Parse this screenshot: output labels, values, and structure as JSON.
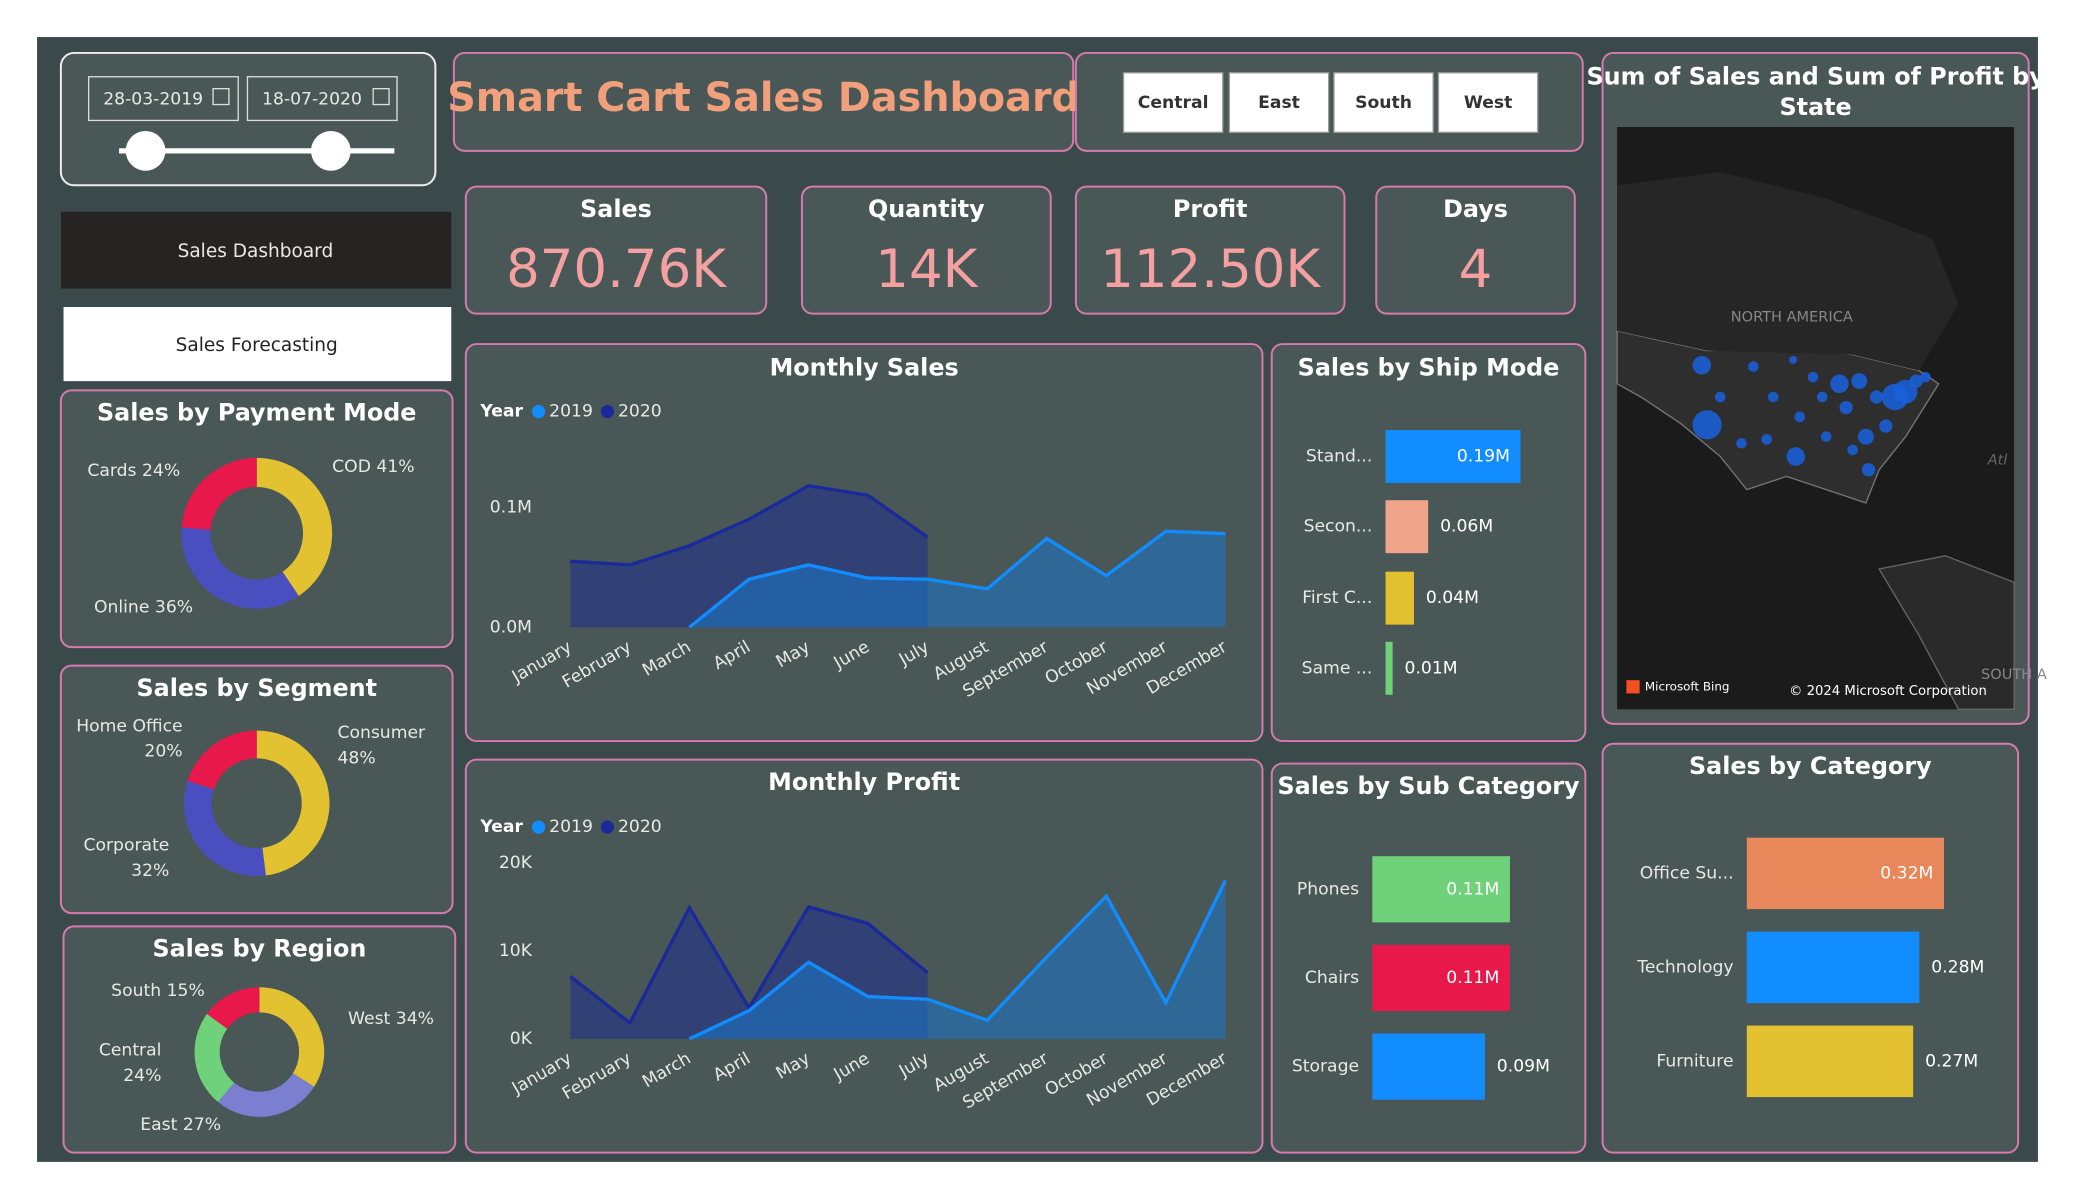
{
  "filters": {
    "date_start": "28-03-2019",
    "date_end": "18-07-2020",
    "regions": [
      "Central",
      "East",
      "South",
      "West"
    ]
  },
  "navigation": [
    "Sales Dashboard",
    "Sales Forecasting"
  ],
  "header": {
    "title": "Smart Cart Sales Dashboard"
  },
  "kpis": [
    {
      "label": "Sales",
      "value": "870.76K"
    },
    {
      "label": "Quantity",
      "value": "14K"
    },
    {
      "label": "Profit",
      "value": "112.50K"
    },
    {
      "label": "Days",
      "value": "4"
    }
  ],
  "map": {
    "title": [
      "Sum of Sales and Sum of Profit by",
      "State"
    ],
    "region_label": "NORTH AMERICA",
    "ocean_label": "Atl",
    "south_label": "SOUTH A",
    "attribution": "Microsoft Bing",
    "copyright": "© 2024 Microsoft Corporation"
  },
  "chart_data": [
    {
      "type": "donut",
      "title": "Sales by Payment Mode",
      "categories": [
        "COD",
        "Online",
        "Cards"
      ],
      "values": [
        41,
        36,
        24
      ],
      "value_labels": [
        "41%",
        "36%",
        "24%"
      ],
      "colors": [
        "#e3c232",
        "#4a4fc0",
        "#e8194a"
      ]
    },
    {
      "type": "donut",
      "title": "Sales by Segment",
      "categories": [
        "Consumer",
        "Corporate",
        "Home Office"
      ],
      "values": [
        48,
        32,
        20
      ],
      "value_labels": [
        "48%",
        "32%",
        "20%"
      ],
      "colors": [
        "#e3c232",
        "#4a4fc0",
        "#e8194a"
      ]
    },
    {
      "type": "donut",
      "title": "Sales by Region",
      "categories": [
        "West",
        "East",
        "Central",
        "South"
      ],
      "values": [
        34,
        27,
        24,
        15
      ],
      "value_labels": [
        "34%",
        "27%",
        "24%",
        "15%"
      ],
      "colors": [
        "#e3c232",
        "#7b7fd0",
        "#6fd27a",
        "#e8194a"
      ]
    },
    {
      "type": "area",
      "title": "Monthly Sales",
      "legend_title": "Year",
      "categories": [
        "January",
        "February",
        "March",
        "April",
        "May",
        "June",
        "July",
        "August",
        "September",
        "October",
        "November",
        "December"
      ],
      "series": [
        {
          "name": "2020",
          "color": "#1a2a9a",
          "values": [
            0.055,
            0.052,
            0.068,
            0.09,
            0.118,
            0.11,
            0.075,
            null,
            null,
            null,
            null,
            null
          ]
        },
        {
          "name": "2019",
          "color": "#118dff",
          "values": [
            null,
            null,
            0.0,
            0.04,
            0.052,
            0.041,
            0.04,
            0.032,
            0.074,
            0.043,
            0.08,
            0.078
          ]
        }
      ],
      "ylim": [
        0,
        0.15
      ],
      "yticks": [
        {
          "value": 0,
          "label": "0.0M"
        },
        {
          "value": 0.1,
          "label": "0.1M"
        }
      ]
    },
    {
      "type": "area",
      "title": "Monthly Profit",
      "legend_title": "Year",
      "categories": [
        "January",
        "February",
        "March",
        "April",
        "May",
        "June",
        "July",
        "August",
        "September",
        "October",
        "November",
        "December"
      ],
      "series": [
        {
          "name": "2020",
          "color": "#1a2a9a",
          "values": [
            7.1,
            1.8,
            14.9,
            3.5,
            15.0,
            13.1,
            7.5,
            null,
            null,
            null,
            null,
            null
          ]
        },
        {
          "name": "2019",
          "color": "#118dff",
          "values": [
            null,
            null,
            0,
            3.2,
            8.7,
            4.8,
            4.5,
            2.1,
            9.3,
            16.2,
            4.1,
            18.0
          ]
        }
      ],
      "ylim": [
        0,
        20
      ],
      "yticks": [
        {
          "value": 0,
          "label": "0K"
        },
        {
          "value": 10,
          "label": "10K"
        },
        {
          "value": 20,
          "label": "20K"
        }
      ]
    },
    {
      "type": "hbar",
      "title": "Sales by Ship Mode",
      "categories": [
        "Stand...",
        "Secon...",
        "First C...",
        "Same ..."
      ],
      "values": [
        0.19,
        0.06,
        0.04,
        0.01
      ],
      "value_labels": [
        "0.19M",
        "0.06M",
        "0.04M",
        "0.01M"
      ],
      "colors": [
        "#118dff",
        "#f0a58a",
        "#e3c232",
        "#6fd27a"
      ]
    },
    {
      "type": "hbar",
      "title": "Sales by Sub Category",
      "categories": [
        "Phones",
        "Chairs",
        "Storage"
      ],
      "values": [
        0.11,
        0.11,
        0.09
      ],
      "value_labels": [
        "0.11M",
        "0.11M",
        "0.09M"
      ],
      "colors": [
        "#6fd27a",
        "#e8194a",
        "#118dff"
      ]
    },
    {
      "type": "hbar",
      "title": "Sales by Category",
      "categories": [
        "Office Su...",
        "Technology",
        "Furniture"
      ],
      "values": [
        0.32,
        0.28,
        0.27
      ],
      "value_labels": [
        "0.32M",
        "0.28M",
        "0.27M"
      ],
      "colors": [
        "#e8875a",
        "#118dff",
        "#e3c232"
      ]
    }
  ]
}
